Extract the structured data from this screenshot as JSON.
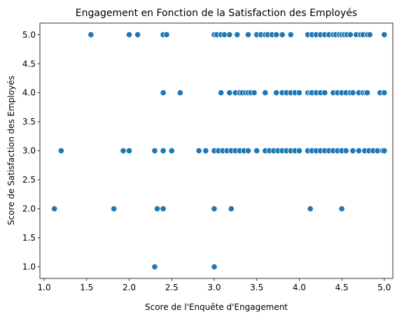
{
  "chart_data": {
    "type": "scatter",
    "title": "Engagement en Fonction de la Satisfaction des Employés",
    "xlabel": "Score de l'Enquête d'Engagement",
    "ylabel": "Score de Satisfaction des Employés",
    "xlim": [
      0.95,
      5.1
    ],
    "ylim": [
      0.8,
      5.2
    ],
    "xticks": [
      "1.0",
      "1.5",
      "2.0",
      "2.5",
      "3.0",
      "3.5",
      "4.0",
      "4.5",
      "5.0"
    ],
    "yticks": [
      "1.0",
      "1.5",
      "2.0",
      "2.5",
      "3.0",
      "3.5",
      "4.0",
      "4.5",
      "5.0"
    ],
    "grid": false,
    "legend": "none",
    "point_color": "#1f77b4",
    "series": [
      {
        "points": [
          [
            1.55,
            5
          ],
          [
            2.0,
            5
          ],
          [
            2.1,
            5
          ],
          [
            2.4,
            5
          ],
          [
            2.44,
            5
          ],
          [
            3.0,
            5
          ],
          [
            3.03,
            5
          ],
          [
            3.08,
            5
          ],
          [
            3.12,
            5
          ],
          [
            3.18,
            5
          ],
          [
            3.27,
            5
          ],
          [
            3.4,
            5
          ],
          [
            3.5,
            5
          ],
          [
            3.55,
            5
          ],
          [
            3.6,
            5
          ],
          [
            3.63,
            5
          ],
          [
            3.68,
            5
          ],
          [
            3.73,
            5
          ],
          [
            3.8,
            5
          ],
          [
            3.9,
            5
          ],
          [
            4.1,
            5
          ],
          [
            4.15,
            5
          ],
          [
            4.2,
            5
          ],
          [
            4.25,
            5
          ],
          [
            4.3,
            5
          ],
          [
            4.35,
            5
          ],
          [
            4.4,
            5
          ],
          [
            4.43,
            5
          ],
          [
            4.47,
            5
          ],
          [
            4.5,
            5
          ],
          [
            4.53,
            5
          ],
          [
            4.56,
            5
          ],
          [
            4.6,
            5
          ],
          [
            4.67,
            5
          ],
          [
            4.72,
            5
          ],
          [
            4.75,
            5
          ],
          [
            4.8,
            5
          ],
          [
            4.83,
            5
          ],
          [
            5.0,
            5
          ],
          [
            2.4,
            4
          ],
          [
            2.6,
            4
          ],
          [
            3.08,
            4
          ],
          [
            3.18,
            4
          ],
          [
            3.25,
            4
          ],
          [
            3.3,
            4
          ],
          [
            3.33,
            4
          ],
          [
            3.37,
            4
          ],
          [
            3.4,
            4
          ],
          [
            3.43,
            4
          ],
          [
            3.47,
            4
          ],
          [
            3.6,
            4
          ],
          [
            3.73,
            4
          ],
          [
            3.8,
            4
          ],
          [
            3.85,
            4
          ],
          [
            3.9,
            4
          ],
          [
            3.95,
            4
          ],
          [
            4.0,
            4
          ],
          [
            4.1,
            4
          ],
          [
            4.13,
            4
          ],
          [
            4.15,
            4
          ],
          [
            4.2,
            4
          ],
          [
            4.25,
            4
          ],
          [
            4.3,
            4
          ],
          [
            4.4,
            4
          ],
          [
            4.45,
            4
          ],
          [
            4.5,
            4
          ],
          [
            4.55,
            4
          ],
          [
            4.6,
            4
          ],
          [
            4.63,
            4
          ],
          [
            4.7,
            4
          ],
          [
            4.75,
            4
          ],
          [
            4.78,
            4
          ],
          [
            4.8,
            4
          ],
          [
            4.95,
            4
          ],
          [
            5.0,
            4
          ],
          [
            1.2,
            3
          ],
          [
            1.93,
            3
          ],
          [
            2.0,
            3
          ],
          [
            2.3,
            3
          ],
          [
            2.4,
            3
          ],
          [
            2.5,
            3
          ],
          [
            2.82,
            3
          ],
          [
            2.9,
            3
          ],
          [
            3.0,
            3
          ],
          [
            3.05,
            3
          ],
          [
            3.1,
            3
          ],
          [
            3.15,
            3
          ],
          [
            3.2,
            3
          ],
          [
            3.25,
            3
          ],
          [
            3.3,
            3
          ],
          [
            3.35,
            3
          ],
          [
            3.4,
            3
          ],
          [
            3.5,
            3
          ],
          [
            3.6,
            3
          ],
          [
            3.65,
            3
          ],
          [
            3.7,
            3
          ],
          [
            3.75,
            3
          ],
          [
            3.8,
            3
          ],
          [
            3.85,
            3
          ],
          [
            3.9,
            3
          ],
          [
            3.95,
            3
          ],
          [
            4.0,
            3
          ],
          [
            4.1,
            3
          ],
          [
            4.15,
            3
          ],
          [
            4.2,
            3
          ],
          [
            4.25,
            3
          ],
          [
            4.3,
            3
          ],
          [
            4.35,
            3
          ],
          [
            4.4,
            3
          ],
          [
            4.45,
            3
          ],
          [
            4.5,
            3
          ],
          [
            4.55,
            3
          ],
          [
            4.63,
            3
          ],
          [
            4.7,
            3
          ],
          [
            4.77,
            3
          ],
          [
            4.82,
            3
          ],
          [
            4.87,
            3
          ],
          [
            4.92,
            3
          ],
          [
            4.98,
            3
          ],
          [
            5.0,
            3
          ],
          [
            1.12,
            2
          ],
          [
            1.82,
            2
          ],
          [
            2.33,
            2
          ],
          [
            2.4,
            2
          ],
          [
            3.0,
            2
          ],
          [
            3.2,
            2
          ],
          [
            4.13,
            2
          ],
          [
            4.5,
            2
          ],
          [
            2.3,
            1
          ],
          [
            3.0,
            1
          ]
        ]
      }
    ]
  }
}
